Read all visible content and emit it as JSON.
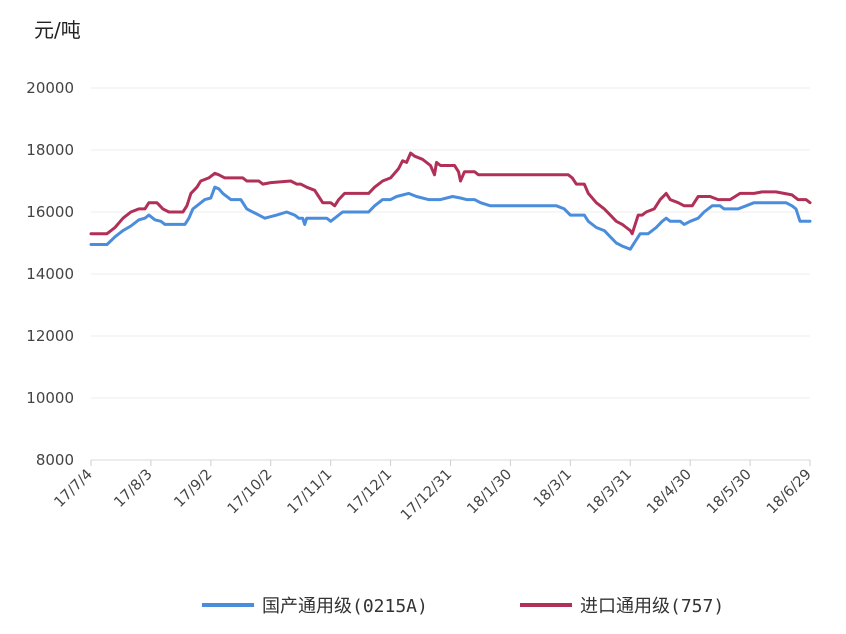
{
  "chart_data": {
    "type": "line",
    "ylabel": "元/吨",
    "ylim": [
      8000,
      20000
    ],
    "yticks": [
      8000,
      10000,
      12000,
      14000,
      16000,
      18000,
      20000
    ],
    "x_range": [
      "2017-07-04",
      "2018-06-29"
    ],
    "xticks": [
      {
        "date": "2017-07-04",
        "label": "17/7/4"
      },
      {
        "date": "2017-08-03",
        "label": "17/8/3"
      },
      {
        "date": "2017-09-02",
        "label": "17/9/2"
      },
      {
        "date": "2017-10-02",
        "label": "17/10/2"
      },
      {
        "date": "2017-11-01",
        "label": "17/11/1"
      },
      {
        "date": "2017-12-01",
        "label": "17/12/1"
      },
      {
        "date": "2017-12-31",
        "label": "17/12/31"
      },
      {
        "date": "2018-01-30",
        "label": "18/1/30"
      },
      {
        "date": "2018-03-01",
        "label": "18/3/1"
      },
      {
        "date": "2018-03-31",
        "label": "18/3/31"
      },
      {
        "date": "2018-04-30",
        "label": "18/4/30"
      },
      {
        "date": "2018-05-30",
        "label": "18/5/30"
      },
      {
        "date": "2018-06-29",
        "label": "18/6/29"
      }
    ],
    "grid": "horizontal",
    "legend_position": "bottom",
    "series": [
      {
        "name": "国产通用级(0215A)",
        "color": "#4a8ddc",
        "points": [
          [
            "2017-07-04",
            14950
          ],
          [
            "2017-07-12",
            14950
          ],
          [
            "2017-07-16",
            15200
          ],
          [
            "2017-07-20",
            15400
          ],
          [
            "2017-07-24",
            15550
          ],
          [
            "2017-07-28",
            15750
          ],
          [
            "2017-07-31",
            15800
          ],
          [
            "2017-08-02",
            15900
          ],
          [
            "2017-08-05",
            15750
          ],
          [
            "2017-08-08",
            15700
          ],
          [
            "2017-08-10",
            15600
          ],
          [
            "2017-08-15",
            15600
          ],
          [
            "2017-08-20",
            15600
          ],
          [
            "2017-08-22",
            15800
          ],
          [
            "2017-08-24",
            16100
          ],
          [
            "2017-08-27",
            16250
          ],
          [
            "2017-08-30",
            16400
          ],
          [
            "2017-09-02",
            16450
          ],
          [
            "2017-09-04",
            16800
          ],
          [
            "2017-09-06",
            16750
          ],
          [
            "2017-09-08",
            16600
          ],
          [
            "2017-09-12",
            16400
          ],
          [
            "2017-09-17",
            16400
          ],
          [
            "2017-09-20",
            16100
          ],
          [
            "2017-09-26",
            15900
          ],
          [
            "2017-09-29",
            15800
          ],
          [
            "2017-10-05",
            15900
          ],
          [
            "2017-10-10",
            16000
          ],
          [
            "2017-10-14",
            15900
          ],
          [
            "2017-10-16",
            15800
          ],
          [
            "2017-10-18",
            15800
          ],
          [
            "2017-10-19",
            15600
          ],
          [
            "2017-10-20",
            15800
          ],
          [
            "2017-10-25",
            15800
          ],
          [
            "2017-10-30",
            15800
          ],
          [
            "2017-11-01",
            15700
          ],
          [
            "2017-11-03",
            15800
          ],
          [
            "2017-11-07",
            16000
          ],
          [
            "2017-11-12",
            16000
          ],
          [
            "2017-11-20",
            16000
          ],
          [
            "2017-11-23",
            16200
          ],
          [
            "2017-11-27",
            16400
          ],
          [
            "2017-12-01",
            16400
          ],
          [
            "2017-12-04",
            16500
          ],
          [
            "2017-12-10",
            16600
          ],
          [
            "2017-12-14",
            16500
          ],
          [
            "2017-12-20",
            16400
          ],
          [
            "2017-12-26",
            16400
          ],
          [
            "2018-01-01",
            16500
          ],
          [
            "2018-01-05",
            16450
          ],
          [
            "2018-01-08",
            16400
          ],
          [
            "2018-01-12",
            16400
          ],
          [
            "2018-01-15",
            16300
          ],
          [
            "2018-01-20",
            16200
          ],
          [
            "2018-01-30",
            16200
          ],
          [
            "2018-02-10",
            16200
          ],
          [
            "2018-02-22",
            16200
          ],
          [
            "2018-02-26",
            16100
          ],
          [
            "2018-03-01",
            15900
          ],
          [
            "2018-03-08",
            15900
          ],
          [
            "2018-03-10",
            15700
          ],
          [
            "2018-03-14",
            15500
          ],
          [
            "2018-03-18",
            15400
          ],
          [
            "2018-03-21",
            15200
          ],
          [
            "2018-03-24",
            15000
          ],
          [
            "2018-03-27",
            14900
          ],
          [
            "2018-03-31",
            14800
          ],
          [
            "2018-04-02",
            15000
          ],
          [
            "2018-04-05",
            15300
          ],
          [
            "2018-04-09",
            15300
          ],
          [
            "2018-04-13",
            15500
          ],
          [
            "2018-04-16",
            15700
          ],
          [
            "2018-04-18",
            15800
          ],
          [
            "2018-04-20",
            15700
          ],
          [
            "2018-04-25",
            15700
          ],
          [
            "2018-04-27",
            15600
          ],
          [
            "2018-04-30",
            15700
          ],
          [
            "2018-05-04",
            15800
          ],
          [
            "2018-05-07",
            16000
          ],
          [
            "2018-05-11",
            16200
          ],
          [
            "2018-05-15",
            16200
          ],
          [
            "2018-05-17",
            16100
          ],
          [
            "2018-05-24",
            16100
          ],
          [
            "2018-05-28",
            16200
          ],
          [
            "2018-06-01",
            16300
          ],
          [
            "2018-06-10",
            16300
          ],
          [
            "2018-06-17",
            16300
          ],
          [
            "2018-06-20",
            16200
          ],
          [
            "2018-06-22",
            16100
          ],
          [
            "2018-06-24",
            15700
          ],
          [
            "2018-06-29",
            15700
          ]
        ]
      },
      {
        "name": "进口通用级(757)",
        "color": "#b03058",
        "points": [
          [
            "2017-07-04",
            15300
          ],
          [
            "2017-07-12",
            15300
          ],
          [
            "2017-07-16",
            15500
          ],
          [
            "2017-07-20",
            15800
          ],
          [
            "2017-07-24",
            16000
          ],
          [
            "2017-07-28",
            16100
          ],
          [
            "2017-07-31",
            16100
          ],
          [
            "2017-08-02",
            16300
          ],
          [
            "2017-08-06",
            16300
          ],
          [
            "2017-08-09",
            16100
          ],
          [
            "2017-08-12",
            16000
          ],
          [
            "2017-08-19",
            16000
          ],
          [
            "2017-08-21",
            16200
          ],
          [
            "2017-08-23",
            16600
          ],
          [
            "2017-08-26",
            16800
          ],
          [
            "2017-08-28",
            17000
          ],
          [
            "2017-09-01",
            17100
          ],
          [
            "2017-09-04",
            17250
          ],
          [
            "2017-09-06",
            17200
          ],
          [
            "2017-09-09",
            17100
          ],
          [
            "2017-09-18",
            17100
          ],
          [
            "2017-09-20",
            17000
          ],
          [
            "2017-09-26",
            17000
          ],
          [
            "2017-09-28",
            16900
          ],
          [
            "2017-10-02",
            16950
          ],
          [
            "2017-10-12",
            17000
          ],
          [
            "2017-10-15",
            16900
          ],
          [
            "2017-10-17",
            16900
          ],
          [
            "2017-10-20",
            16800
          ],
          [
            "2017-10-24",
            16700
          ],
          [
            "2017-10-26",
            16500
          ],
          [
            "2017-10-28",
            16300
          ],
          [
            "2017-11-01",
            16300
          ],
          [
            "2017-11-03",
            16200
          ],
          [
            "2017-11-05",
            16400
          ],
          [
            "2017-11-08",
            16600
          ],
          [
            "2017-11-14",
            16600
          ],
          [
            "2017-11-20",
            16600
          ],
          [
            "2017-11-23",
            16800
          ],
          [
            "2017-11-27",
            17000
          ],
          [
            "2017-12-01",
            17100
          ],
          [
            "2017-12-05",
            17400
          ],
          [
            "2017-12-07",
            17650
          ],
          [
            "2017-12-09",
            17600
          ],
          [
            "2017-12-11",
            17900
          ],
          [
            "2017-12-13",
            17800
          ],
          [
            "2017-12-17",
            17700
          ],
          [
            "2017-12-21",
            17500
          ],
          [
            "2017-12-23",
            17200
          ],
          [
            "2017-12-24",
            17600
          ],
          [
            "2017-12-26",
            17500
          ],
          [
            "2018-01-02",
            17500
          ],
          [
            "2018-01-04",
            17300
          ],
          [
            "2018-01-05",
            17000
          ],
          [
            "2018-01-07",
            17300
          ],
          [
            "2018-01-12",
            17300
          ],
          [
            "2018-01-14",
            17200
          ],
          [
            "2018-01-20",
            17200
          ],
          [
            "2018-02-20",
            17200
          ],
          [
            "2018-02-28",
            17200
          ],
          [
            "2018-03-02",
            17100
          ],
          [
            "2018-03-04",
            16900
          ],
          [
            "2018-03-08",
            16900
          ],
          [
            "2018-03-10",
            16600
          ],
          [
            "2018-03-14",
            16300
          ],
          [
            "2018-03-18",
            16100
          ],
          [
            "2018-03-21",
            15900
          ],
          [
            "2018-03-24",
            15700
          ],
          [
            "2018-03-27",
            15600
          ],
          [
            "2018-03-29",
            15500
          ],
          [
            "2018-03-31",
            15400
          ],
          [
            "2018-04-01",
            15300
          ],
          [
            "2018-04-04",
            15900
          ],
          [
            "2018-04-06",
            15900
          ],
          [
            "2018-04-08",
            16000
          ],
          [
            "2018-04-12",
            16100
          ],
          [
            "2018-04-15",
            16400
          ],
          [
            "2018-04-18",
            16600
          ],
          [
            "2018-04-20",
            16400
          ],
          [
            "2018-04-24",
            16300
          ],
          [
            "2018-04-27",
            16200
          ],
          [
            "2018-05-01",
            16200
          ],
          [
            "2018-05-04",
            16500
          ],
          [
            "2018-05-10",
            16500
          ],
          [
            "2018-05-14",
            16400
          ],
          [
            "2018-05-20",
            16400
          ],
          [
            "2018-05-25",
            16600
          ],
          [
            "2018-06-01",
            16600
          ],
          [
            "2018-06-05",
            16650
          ],
          [
            "2018-06-12",
            16650
          ],
          [
            "2018-06-16",
            16600
          ],
          [
            "2018-06-20",
            16550
          ],
          [
            "2018-06-23",
            16400
          ],
          [
            "2018-06-27",
            16400
          ],
          [
            "2018-06-29",
            16300
          ]
        ]
      }
    ]
  }
}
